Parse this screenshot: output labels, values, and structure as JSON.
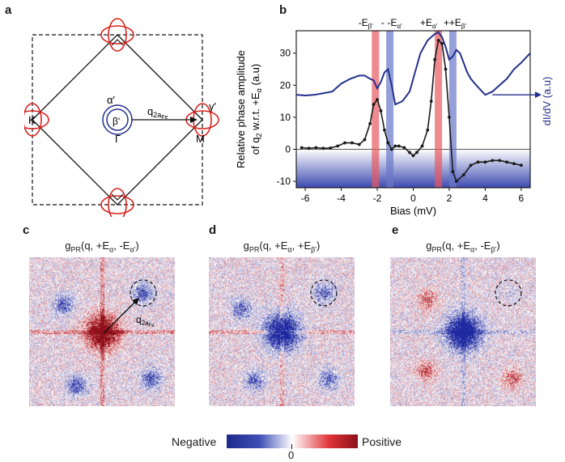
{
  "panels": {
    "a": {
      "letter": "a",
      "labels": {
        "alpha": "α'",
        "beta": "β'",
        "gamma": "γ'",
        "Gamma": "Γ",
        "K": "K",
        "M": "M",
        "q": "q",
        "q_sub": "2a",
        "q_subsub": "Fe"
      }
    },
    "b": {
      "letter": "b"
    },
    "c": {
      "letter": "c",
      "title": "g",
      "title_sub": "PR",
      "title_args": "(q, +E",
      "a1": "α",
      "mid1": ", -E",
      "a2": "α'",
      "end": ")",
      "annotation": {
        "q": "q",
        "sub": "2a",
        "subsub": "Fe"
      }
    },
    "d": {
      "letter": "d",
      "title": "g",
      "title_sub": "PR",
      "title_args": "(q, +E",
      "a1": "α",
      "mid1": ", +E",
      "a2": "β'",
      "end": ")"
    },
    "e": {
      "letter": "e",
      "title": "g",
      "title_sub": "PR",
      "title_args": "(q, +E",
      "a1": "α",
      "mid1": ", -E",
      "a2": "β'",
      "end": ")"
    }
  },
  "colorbar": {
    "negative": "Negative",
    "positive": "Positive",
    "zero": "0",
    "colors": [
      "#1f2a8a",
      "#ffffff",
      "#8b0f1a"
    ]
  },
  "chart_data": {
    "type": "line",
    "xlabel": "Bias (mV)",
    "ylabel_left_line1": "Relative phase amplitude",
    "ylabel_left_line2_pre": "of q",
    "ylabel_left_line2_sub": "2",
    "ylabel_left_line2_post": " w.r.t. +E",
    "ylabel_left_line2_sub2": "α",
    "ylabel_left_line2_end": " (a.u)",
    "ylabel_right": "dI/dV (a.u)",
    "xlim": [
      -6.5,
      6.5
    ],
    "ylim": [
      -12,
      37
    ],
    "xticks": [
      -6,
      -4,
      -2,
      0,
      2,
      4,
      6
    ],
    "yticks": [
      -10,
      0,
      10,
      20,
      30
    ],
    "top_labels": [
      {
        "text": "-E",
        "sub": "β'",
        "x": -2.1
      },
      {
        "text": "-E",
        "sub": "α'",
        "x": -1.3
      },
      {
        "text": "+E",
        "sub": "α'",
        "x": 1.4
      },
      {
        "text": "+E",
        "sub": "β'",
        "x": 2.2
      }
    ],
    "bands": [
      {
        "x": -2.1,
        "color": "#e8585e"
      },
      {
        "x": -1.3,
        "color": "#6a78c8"
      },
      {
        "x": 1.4,
        "color": "#e8585e"
      },
      {
        "x": 2.2,
        "color": "#6a78c8"
      }
    ],
    "series": [
      {
        "name": "phase",
        "color": "#1a1a1a",
        "x": [
          -6.2,
          -5.8,
          -5.4,
          -5.0,
          -4.6,
          -4.2,
          -3.8,
          -3.4,
          -3.0,
          -2.7,
          -2.4,
          -2.2,
          -2.0,
          -1.8,
          -1.6,
          -1.4,
          -1.2,
          -1.0,
          -0.8,
          -0.5,
          -0.2,
          0.0,
          0.2,
          0.5,
          0.8,
          1.0,
          1.2,
          1.4,
          1.6,
          1.8,
          2.0,
          2.2,
          2.4,
          2.8,
          3.2,
          3.6,
          4.0,
          4.4,
          4.8,
          5.2,
          5.6,
          6.0
        ],
        "y": [
          0.5,
          0.3,
          0.5,
          0.3,
          0.4,
          1.0,
          2.0,
          2.0,
          1.5,
          3.0,
          8.0,
          14.0,
          15.5,
          12.0,
          6.0,
          2.0,
          0.0,
          1.0,
          1.0,
          0.5,
          -1.0,
          -2.0,
          -1.0,
          1.0,
          6.0,
          15.0,
          28.0,
          34.0,
          33.0,
          25.0,
          10.0,
          -7.0,
          -10.0,
          -8.0,
          -5.0,
          -4.0,
          -4.0,
          -3.5,
          -3.5,
          -4.0,
          -4.5,
          -5.0
        ]
      },
      {
        "name": "dIdV",
        "color": "#24308c",
        "axis": "right",
        "x": [
          -6.5,
          -6.0,
          -5.5,
          -5.0,
          -4.5,
          -4.0,
          -3.5,
          -3.0,
          -2.7,
          -2.4,
          -2.2,
          -2.0,
          -1.8,
          -1.6,
          -1.4,
          -1.2,
          -1.0,
          -0.6,
          -0.2,
          0.0,
          0.4,
          0.8,
          1.0,
          1.2,
          1.4,
          1.6,
          1.8,
          2.0,
          2.2,
          2.4,
          2.6,
          2.8,
          3.0,
          3.2,
          3.5,
          4.0,
          4.4,
          4.8,
          5.2,
          5.6,
          6.0,
          6.5
        ],
        "y": [
          17,
          16.8,
          17,
          17.5,
          18,
          20.5,
          22,
          23,
          23,
          22,
          21.5,
          19,
          21,
          24,
          25,
          20,
          14,
          15,
          18,
          22,
          30,
          34,
          35,
          36,
          36.5,
          35,
          32,
          28,
          29,
          31,
          30,
          27,
          24,
          22,
          20,
          17,
          18,
          20,
          22,
          25,
          27,
          30
        ]
      }
    ]
  }
}
